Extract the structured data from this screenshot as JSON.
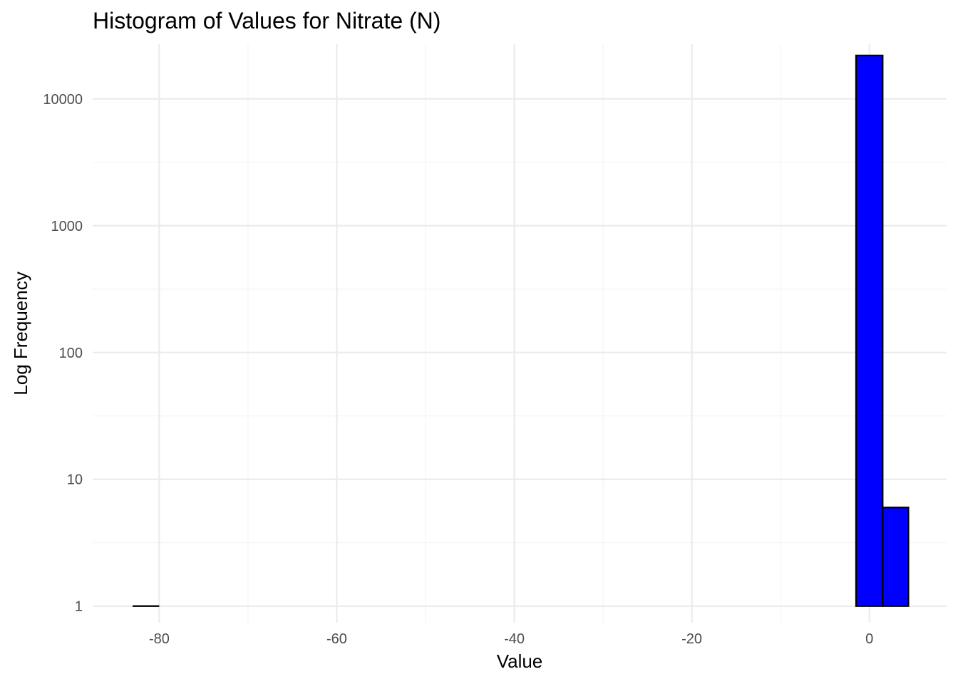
{
  "chart_data": {
    "type": "bar",
    "title": "Histogram of Values for Nitrate (N)",
    "xlabel": "Value",
    "ylabel": "Log Frequency",
    "y_scale": "log10",
    "grid": true,
    "legend": "none",
    "bar_fill": "#0000ff",
    "bar_outline": "#000000",
    "xlim": [
      -87.5,
      8.7
    ],
    "ylim": [
      0.74,
      27000
    ],
    "x_ticks": [
      -80,
      -60,
      -40,
      -20,
      0
    ],
    "x_tick_labels": [
      "-80",
      "-60",
      "-40",
      "-20",
      "0"
    ],
    "x_minor_ticks": [
      -70,
      -50,
      -30,
      -10
    ],
    "y_ticks": [
      1,
      10,
      100,
      1000,
      10000
    ],
    "y_tick_labels": [
      "1",
      "10",
      "100",
      "1000",
      "10000"
    ],
    "y_minor_ticks": [
      3.162,
      31.62,
      316.2,
      3162
    ],
    "bins": [
      {
        "x_start": -83.0,
        "x_end": -80.0,
        "count": 1
      },
      {
        "x_start": -1.5,
        "x_end": 1.5,
        "count": 22000
      },
      {
        "x_start": 1.5,
        "x_end": 4.4,
        "count": 6
      }
    ]
  }
}
